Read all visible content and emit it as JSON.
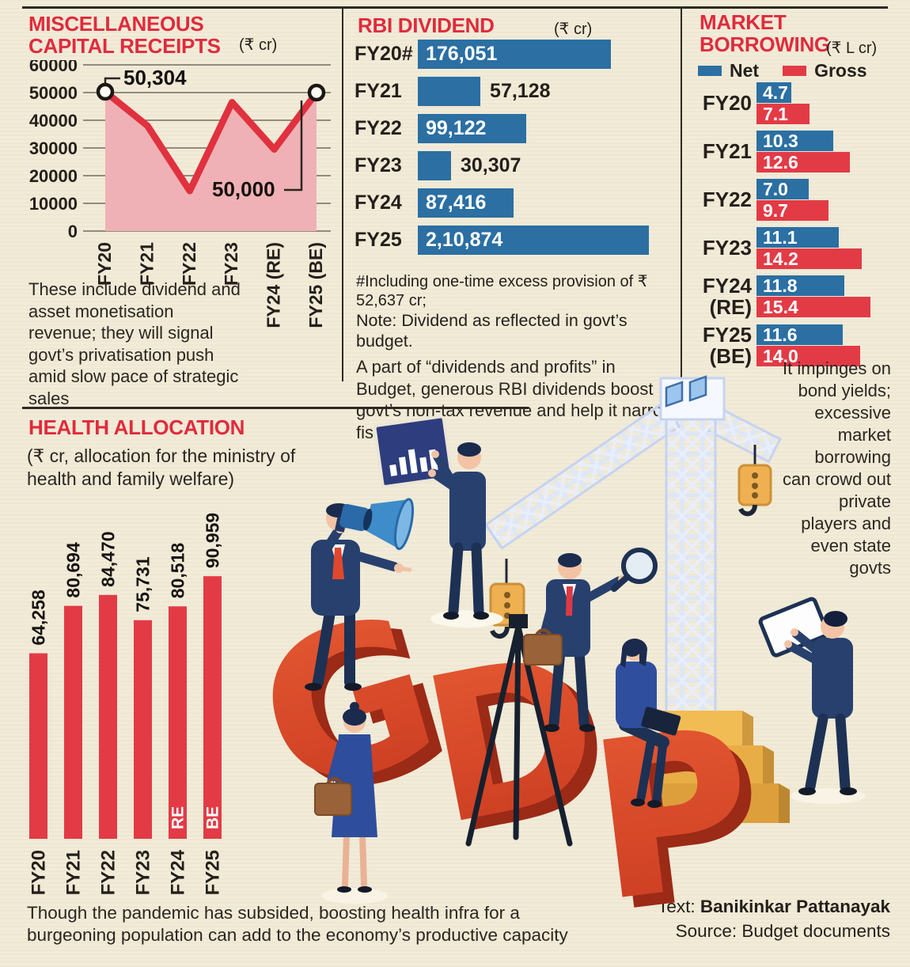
{
  "colors": {
    "background": "#f1ebd8",
    "accent_red": "#e02b3c",
    "bar_blue": "#2b6fa3",
    "bar_red": "#e23b46",
    "line_red": "#e0313f",
    "area_pink": "#efb1b5",
    "text_dark": "#241f1a"
  },
  "panels": {
    "misc": {
      "title1": "MISCELLANEOUS",
      "title2": "CAPITAL RECEIPTS",
      "unit": "(₹ cr)",
      "note": "These include dividend and asset monetisation revenue; they will signal govt’s privatisation push amid slow pace of strategic sales"
    },
    "rbi": {
      "title": "RBI DIVIDEND",
      "unit": "(₹ cr)",
      "footnote1": "#Including one-time excess provision of ₹ 52,637 cr;",
      "footnote2": "Note: Dividend as reflected in govt’s budget.",
      "para": "A part of “dividends and profits” in Budget, generous RBI dividends boost govt’s non-tax revenue and help it narrow fiscal"
    },
    "market": {
      "title1": "MARKET",
      "title2": "BORROWING",
      "unit": "(₹ L cr)",
      "sidenote": "It impinges on bond yields; excessive market borrowing can crowd out private players and even state govts"
    },
    "health": {
      "title": "HEALTH ALLOCATION",
      "subtitle": "(₹ cr, allocation for the ministry of health and family welfare)",
      "caption": "Though the pandemic has subsided, boosting health infra for a burgeoning population can add to the economy’s productive capacity"
    },
    "credits": {
      "text_label": "Text:",
      "author": "Banikinkar Pattanayak",
      "source": "Source: Budget documents"
    }
  },
  "illustration": {
    "gdp_letters": [
      "G",
      "D",
      "P"
    ]
  },
  "chart_data": [
    {
      "id": "misc_receipts",
      "type": "area",
      "title": "Miscellaneous capital receipts",
      "unit": "₹ cr",
      "categories": [
        "FY20",
        "FY21",
        "FY22",
        "FY23",
        "FY24 (RE)",
        "FY25 (BE)"
      ],
      "values": [
        50304,
        38000,
        14500,
        46500,
        29500,
        50000
      ],
      "point_labels": [
        "50,304",
        null,
        null,
        null,
        null,
        "50,000"
      ],
      "ylim": [
        0,
        60000
      ],
      "yticks": [
        60000,
        50000,
        40000,
        30000,
        20000,
        10000,
        0
      ],
      "grid": true,
      "line_color": "#e0313f",
      "area_color": "#efb1b5"
    },
    {
      "id": "rbi_dividend",
      "type": "bar",
      "orientation": "horizontal",
      "unit": "₹ cr",
      "categories": [
        "FY20#",
        "FY21",
        "FY22",
        "FY23",
        "FY24",
        "FY25"
      ],
      "values": [
        176051,
        57128,
        99122,
        30307,
        87416,
        210874
      ],
      "value_labels": [
        "176,051",
        "57,128",
        "99,122",
        "30,307",
        "87,416",
        "2,10,874"
      ],
      "label_inside": [
        true,
        false,
        true,
        false,
        true,
        true
      ],
      "xmax": 211000,
      "bar_color": "#2b6fa3"
    },
    {
      "id": "market_borrowing",
      "type": "grouped-bar",
      "orientation": "horizontal",
      "unit": "₹ L cr",
      "categories": [
        "FY20",
        "FY21",
        "FY22",
        "FY23",
        "FY24 (RE)",
        "FY25 (BE)"
      ],
      "category_lines": [
        [
          "FY20"
        ],
        [
          "FY21"
        ],
        [
          "FY22"
        ],
        [
          "FY23"
        ],
        [
          "FY24",
          "(RE)"
        ],
        [
          "FY25",
          "(BE)"
        ]
      ],
      "series": [
        {
          "name": "Net",
          "color": "#2b6fa3",
          "values": [
            4.7,
            10.3,
            7.0,
            11.1,
            11.8,
            11.6
          ],
          "display": [
            "4.7",
            "10.3",
            "7.0",
            "11.1",
            "11.8",
            "11.6"
          ]
        },
        {
          "name": "Gross",
          "color": "#e23b46",
          "values": [
            7.1,
            12.6,
            9.7,
            14.2,
            15.4,
            14.0
          ],
          "display": [
            "7.1",
            "12.6",
            "9.7",
            "14.2",
            "15.4",
            "14.0"
          ]
        }
      ],
      "xmax": 16,
      "legend_position": "top"
    },
    {
      "id": "health_allocation",
      "type": "bar",
      "orientation": "vertical",
      "unit": "₹ cr",
      "categories": [
        "FY20",
        "FY21",
        "FY22",
        "FY23",
        "FY24",
        "FY25"
      ],
      "values": [
        64258,
        80694,
        84470,
        75731,
        80518,
        90959
      ],
      "value_labels": [
        "64,258",
        "80,694",
        "84,470",
        "75,731",
        "80,518",
        "90,959"
      ],
      "inner_labels": [
        null,
        null,
        null,
        null,
        "RE",
        "BE"
      ],
      "ymax": 91000,
      "bar_color": "#e23b46"
    }
  ]
}
